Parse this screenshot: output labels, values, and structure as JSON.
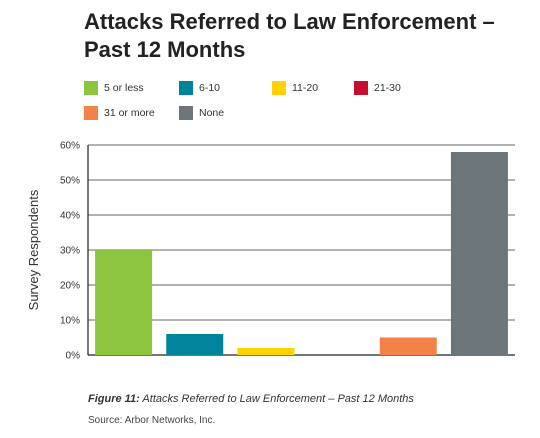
{
  "chart_data": {
    "type": "bar",
    "title": "Attacks Referred to Law Enforcement – Past 12 Months",
    "xlabel": "",
    "ylabel": "Survey Respondents",
    "ylim": [
      0,
      60
    ],
    "ytick_values": [
      0,
      10,
      20,
      30,
      40,
      50,
      60
    ],
    "yticks": [
      "0%",
      "10%",
      "20%",
      "30%",
      "40%",
      "50%",
      "60%"
    ],
    "categories": [
      "5 or less",
      "6-10",
      "11-20",
      "21-30",
      "31 or more",
      "None"
    ],
    "values": [
      30,
      6,
      2,
      0,
      5,
      58
    ],
    "colors": [
      "#8cc63f",
      "#00849b",
      "#ffd200",
      "#c8102e",
      "#f3814a",
      "#6c757a"
    ],
    "grid": true,
    "legend_position": "top"
  },
  "legend": [
    {
      "label": "5 or less",
      "color": "#8cc63f"
    },
    {
      "label": "6-10",
      "color": "#00849b"
    },
    {
      "label": "11-20",
      "color": "#ffd200"
    },
    {
      "label": "21-30",
      "color": "#c8102e"
    },
    {
      "label": "31 or more",
      "color": "#f3814a"
    },
    {
      "label": "None",
      "color": "#6c757a"
    }
  ],
  "caption": {
    "label": "Figure 11:",
    "text": "Attacks Referred to Law Enforcement – Past 12 Months"
  },
  "source": "Source: Arbor Networks, Inc."
}
